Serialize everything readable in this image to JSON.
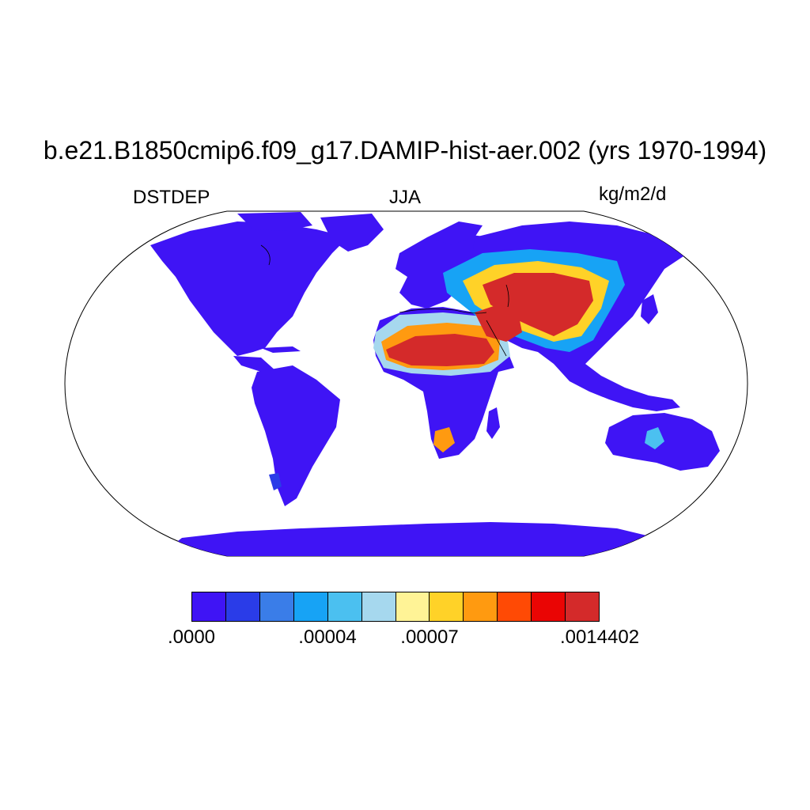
{
  "title": "b.e21.B1850cmip6.f09_g17.DAMIP-hist-aer.002 (yrs 1970-1994)",
  "left_label": "DSTDEP",
  "center_label": "JJA",
  "right_label": "kg/m2/d",
  "colorbar": {
    "colors": [
      "#3f14f5",
      "#2a3ce8",
      "#3a7de8",
      "#17a3f5",
      "#4bc0f0",
      "#a6d8ee",
      "#fff396",
      "#ffd228",
      "#ff9a10",
      "#ff4a05",
      "#ea0504",
      "#d42a2a"
    ],
    "labels": [
      {
        "text": ".0000",
        "boundary": 0
      },
      {
        "text": ".00004",
        "boundary": 4
      },
      {
        "text": ".00007",
        "boundary": 7
      },
      {
        "text": ".0014402",
        "boundary": 12
      }
    ]
  },
  "map_colors": {
    "land_low": "#3f14f5",
    "ocean": "#ffffff",
    "outline": "#000000"
  }
}
